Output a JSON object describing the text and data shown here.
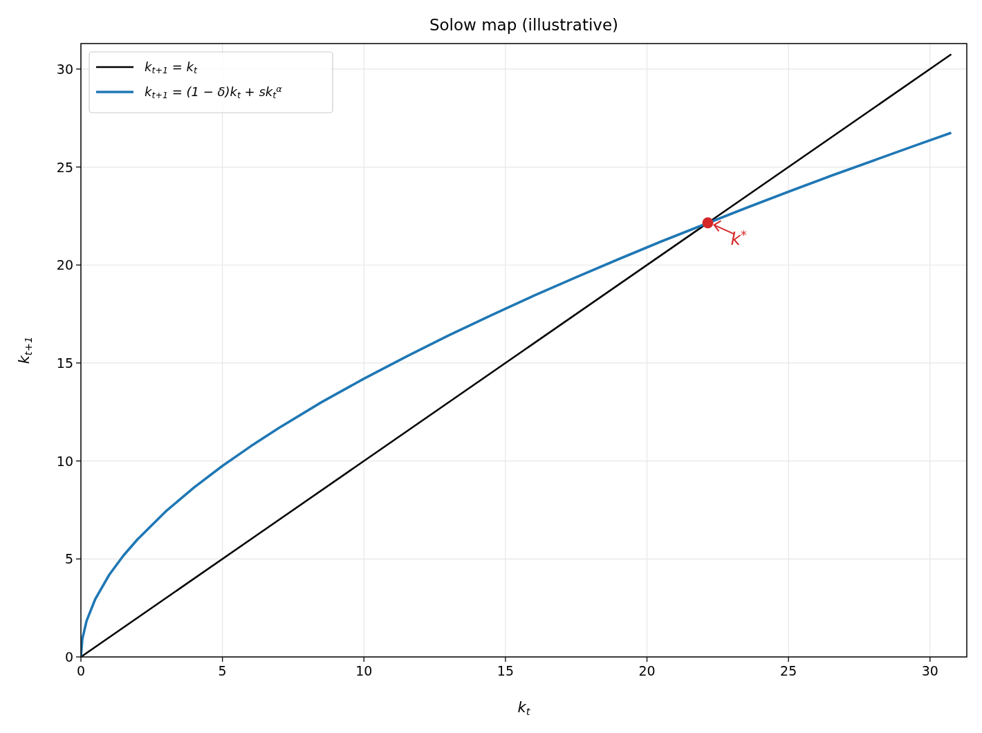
{
  "chart_data": {
    "type": "line",
    "title": "Solow map (illustrative)",
    "xlabel": "k$_{t}$",
    "ylabel": "k$_{t+1}$",
    "xlim": [
      0,
      31.3
    ],
    "ylim": [
      0,
      31.3
    ],
    "xticks": [
      0,
      5,
      10,
      15,
      20,
      25,
      30
    ],
    "yticks": [
      0,
      5,
      10,
      15,
      20,
      25,
      30
    ],
    "grid": true,
    "legend": "top left",
    "series": [
      {
        "name": "k$_{t+1}$ = k$_{t}$",
        "color": "#000000",
        "x": [
          0,
          30.75
        ],
        "values": [
          0,
          30.75
        ]
      },
      {
        "name": "k$_{t+1}$ = (1 − δ)k$_{t}$ + sk$_{t}$$^{α}$",
        "color": "#1f77b4",
        "x": [
          0,
          0.05,
          0.2,
          0.5,
          1,
          1.5,
          2,
          3,
          4,
          5,
          6,
          7,
          8.5,
          10,
          11.5,
          13,
          14.5,
          16,
          17.5,
          19,
          20.5,
          23.5,
          25,
          26.5,
          28,
          29.5,
          30.75
        ],
        "values": [
          0,
          0.91,
          1.84,
          2.93,
          4.19,
          5.17,
          6.0,
          7.43,
          8.65,
          9.75,
          10.75,
          11.69,
          13.0,
          14.2,
          15.33,
          16.41,
          17.44,
          18.43,
          19.38,
          20.3,
          21.2,
          22.91,
          23.74,
          24.55,
          25.33,
          26.11,
          26.75
        ]
      },
      {
        "type": "scatter",
        "marker": "circle",
        "color": "#d62728",
        "x": [
          22.15
        ],
        "values": [
          22.15
        ]
      }
    ],
    "annotations": [
      {
        "text": "k$^{*}$",
        "x": 22.15,
        "y": 22.15
      }
    ]
  }
}
